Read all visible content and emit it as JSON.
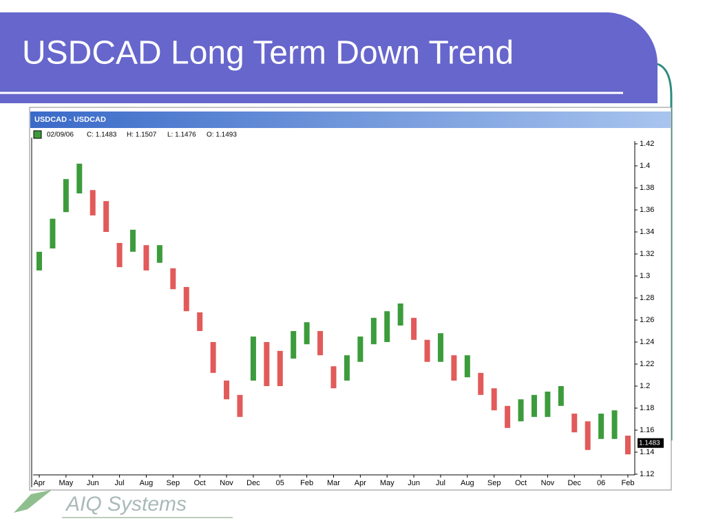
{
  "slide": {
    "title": "USDCAD Long Term Down Trend",
    "footer": "AIQ Systems"
  },
  "chart_window": {
    "title": "USDCAD - USDCAD",
    "info": [
      "02/09/06",
      "C: 1.1483",
      "H: 1.1507",
      "L: 1.1476",
      "O: 1.1493"
    ]
  },
  "chart_data": {
    "type": "ohlc",
    "categories": [
      "Apr",
      null,
      "May",
      null,
      "Jun",
      null,
      "Jul",
      null,
      "Aug",
      null,
      "Sep",
      null,
      "Oct",
      null,
      "Nov",
      null,
      "Dec",
      null,
      "05",
      null,
      "Feb",
      null,
      "Mar",
      null,
      "Apr",
      null,
      "May",
      null,
      "Jun",
      null,
      "Jul",
      null,
      "Aug",
      null,
      "Sep",
      null,
      "Oct",
      null,
      "Nov",
      null,
      "Dec",
      null,
      "06",
      null,
      "Feb"
    ],
    "series": [
      {
        "name": "Low",
        "values": [
          1.305,
          1.325,
          1.358,
          1.375,
          1.355,
          1.34,
          1.308,
          1.322,
          1.305,
          1.312,
          1.288,
          1.268,
          1.25,
          1.212,
          1.188,
          1.172,
          1.205,
          1.2,
          1.2,
          1.225,
          1.238,
          1.228,
          1.198,
          1.205,
          1.222,
          1.238,
          1.24,
          1.255,
          1.242,
          1.222,
          1.222,
          1.205,
          1.208,
          1.192,
          1.178,
          1.162,
          1.168,
          1.172,
          1.172,
          1.182,
          1.158,
          1.142,
          1.152,
          1.152,
          1.138
        ]
      },
      {
        "name": "High",
        "values": [
          1.322,
          1.352,
          1.388,
          1.402,
          1.378,
          1.368,
          1.33,
          1.342,
          1.328,
          1.328,
          1.307,
          1.29,
          1.267,
          1.24,
          1.205,
          1.192,
          1.245,
          1.24,
          1.232,
          1.25,
          1.258,
          1.25,
          1.218,
          1.228,
          1.245,
          1.262,
          1.268,
          1.275,
          1.262,
          1.242,
          1.248,
          1.228,
          1.228,
          1.212,
          1.198,
          1.182,
          1.188,
          1.192,
          1.195,
          1.2,
          1.175,
          1.168,
          1.175,
          1.178,
          1.155
        ]
      }
    ],
    "up_color": "#3c9c3c",
    "down_color": "#e25a5a",
    "ylim": [
      1.12,
      1.42
    ],
    "yticks": [
      1.12,
      1.14,
      1.16,
      1.18,
      1.2,
      1.22,
      1.24,
      1.26,
      1.28,
      1.3,
      1.32,
      1.34,
      1.36,
      1.38,
      1.4,
      1.42
    ],
    "last_price": {
      "value": 1.1483,
      "label": "1.1483"
    }
  }
}
